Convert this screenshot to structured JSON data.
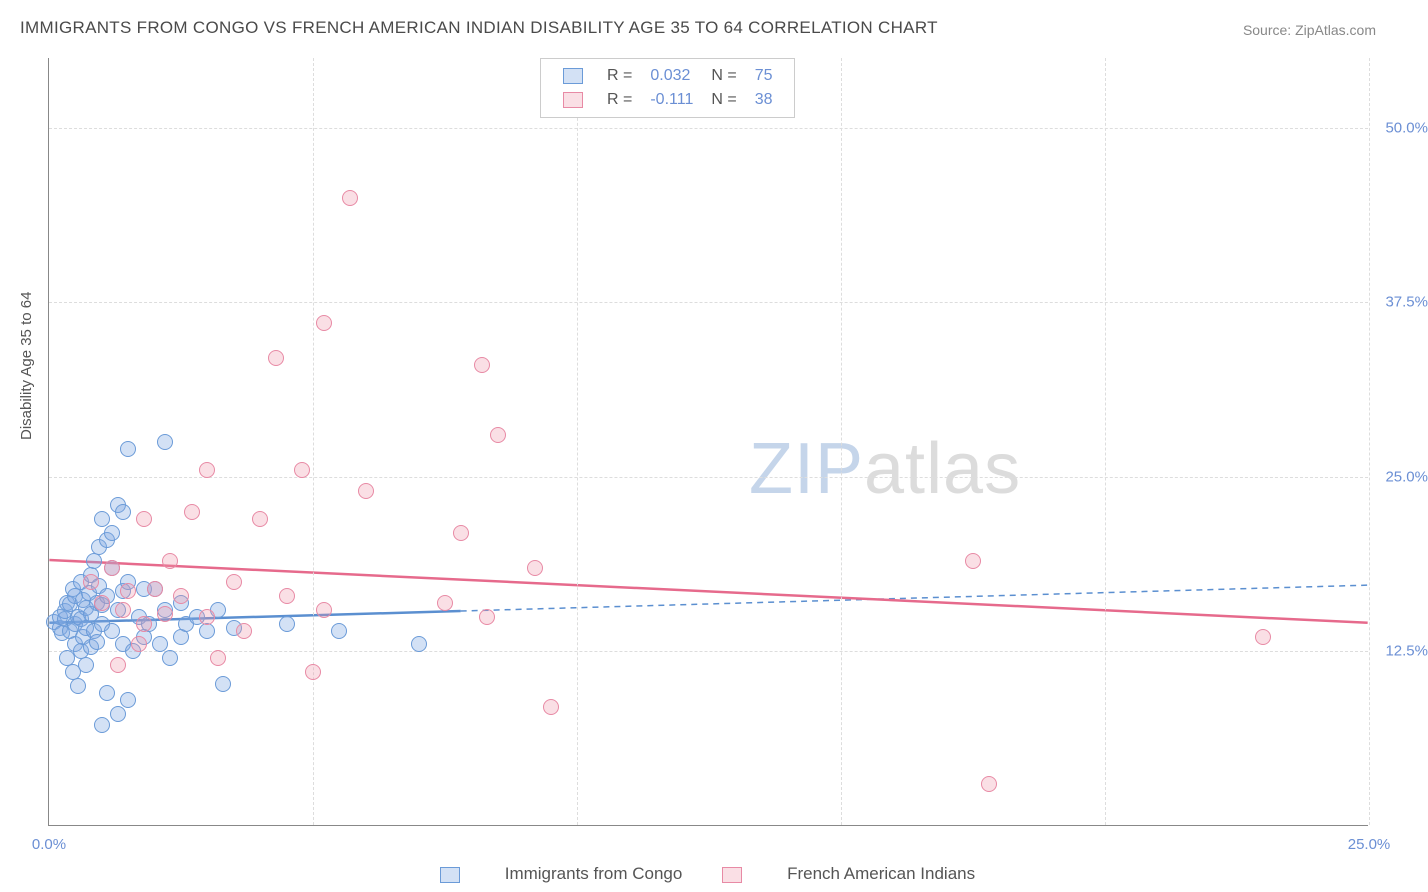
{
  "title": "IMMIGRANTS FROM CONGO VS FRENCH AMERICAN INDIAN DISABILITY AGE 35 TO 64 CORRELATION CHART",
  "source": "Source: ZipAtlas.com",
  "y_axis_label": "Disability Age 35 to 64",
  "watermark_a": "ZIP",
  "watermark_b": "atlas",
  "chart": {
    "type": "scatter",
    "xlim": [
      0,
      25
    ],
    "ylim": [
      0,
      55
    ],
    "x_ticks": [
      0,
      5,
      10,
      15,
      20,
      25
    ],
    "x_tick_labels": [
      "0.0%",
      "",
      "",
      "",
      "",
      "25.0%"
    ],
    "y_ticks": [
      12.5,
      25.0,
      37.5,
      50.0
    ],
    "y_tick_labels": [
      "12.5%",
      "25.0%",
      "37.5%",
      "50.0%"
    ],
    "background_color": "#ffffff",
    "grid_color": "#dddddd",
    "point_radius": 8,
    "series": [
      {
        "name": "Immigrants from Congo",
        "color_fill": "rgba(130,170,225,0.35)",
        "color_stroke": "#6b9bd8",
        "r": "0.032",
        "n": "75",
        "trend": {
          "y_at_x0": 14.5,
          "y_at_x25": 17.2,
          "solid_until_x": 7.8,
          "color": "#5b8fd0",
          "width": 2.5
        },
        "points": [
          [
            0.1,
            14.6
          ],
          [
            0.2,
            14.2
          ],
          [
            0.2,
            15.0
          ],
          [
            0.25,
            13.8
          ],
          [
            0.3,
            14.8
          ],
          [
            0.3,
            15.4
          ],
          [
            0.35,
            12.0
          ],
          [
            0.35,
            16.0
          ],
          [
            0.4,
            14.0
          ],
          [
            0.4,
            15.9
          ],
          [
            0.45,
            11.0
          ],
          [
            0.45,
            17.0
          ],
          [
            0.5,
            13.0
          ],
          [
            0.5,
            14.5
          ],
          [
            0.5,
            16.5
          ],
          [
            0.55,
            10.0
          ],
          [
            0.55,
            15.0
          ],
          [
            0.6,
            12.5
          ],
          [
            0.6,
            14.8
          ],
          [
            0.6,
            17.5
          ],
          [
            0.65,
            13.5
          ],
          [
            0.65,
            16.2
          ],
          [
            0.7,
            11.5
          ],
          [
            0.7,
            14.2
          ],
          [
            0.7,
            15.6
          ],
          [
            0.75,
            16.7
          ],
          [
            0.8,
            12.8
          ],
          [
            0.8,
            15.2
          ],
          [
            0.8,
            18.0
          ],
          [
            0.85,
            14.0
          ],
          [
            0.85,
            19.0
          ],
          [
            0.9,
            13.2
          ],
          [
            0.9,
            16.0
          ],
          [
            0.95,
            17.2
          ],
          [
            0.95,
            20.0
          ],
          [
            1.0,
            7.2
          ],
          [
            1.0,
            14.5
          ],
          [
            1.0,
            15.8
          ],
          [
            1.0,
            22.0
          ],
          [
            1.1,
            9.5
          ],
          [
            1.1,
            16.5
          ],
          [
            1.1,
            20.5
          ],
          [
            1.2,
            14.0
          ],
          [
            1.2,
            18.5
          ],
          [
            1.2,
            21.0
          ],
          [
            1.3,
            8.0
          ],
          [
            1.3,
            15.5
          ],
          [
            1.3,
            23.0
          ],
          [
            1.4,
            13.0
          ],
          [
            1.4,
            16.8
          ],
          [
            1.4,
            22.5
          ],
          [
            1.5,
            9.0
          ],
          [
            1.5,
            17.5
          ],
          [
            1.5,
            27.0
          ],
          [
            1.6,
            12.5
          ],
          [
            1.7,
            15.0
          ],
          [
            1.8,
            13.5
          ],
          [
            1.8,
            17
          ],
          [
            1.9,
            14.5
          ],
          [
            2.0,
            17.0
          ],
          [
            2.1,
            13.0
          ],
          [
            2.2,
            15.5
          ],
          [
            2.2,
            27.5
          ],
          [
            2.3,
            12.0
          ],
          [
            2.5,
            13.5
          ],
          [
            2.5,
            16.0
          ],
          [
            2.6,
            14.5
          ],
          [
            2.8,
            15.0
          ],
          [
            3.0,
            14.0
          ],
          [
            3.2,
            15.5
          ],
          [
            3.3,
            10.2
          ],
          [
            3.5,
            14.2
          ],
          [
            4.5,
            14.5
          ],
          [
            5.5,
            14.0
          ],
          [
            7.0,
            13.0
          ]
        ]
      },
      {
        "name": "French American Indians",
        "color_fill": "rgba(240,150,170,0.30)",
        "color_stroke": "#e88aa5",
        "r": "-0.111",
        "n": "38",
        "trend": {
          "y_at_x0": 19.0,
          "y_at_x25": 14.5,
          "solid_until_x": 25,
          "color": "#e66a8c",
          "width": 2.5
        },
        "points": [
          [
            0.8,
            17.5
          ],
          [
            1.0,
            16.0
          ],
          [
            1.2,
            18.5
          ],
          [
            1.3,
            11.5
          ],
          [
            1.4,
            15.5
          ],
          [
            1.5,
            16.8
          ],
          [
            1.7,
            13.0
          ],
          [
            1.8,
            14.5
          ],
          [
            1.8,
            22.0
          ],
          [
            2.0,
            17.0
          ],
          [
            2.2,
            15.2
          ],
          [
            2.3,
            19.0
          ],
          [
            2.5,
            16.5
          ],
          [
            2.7,
            22.5
          ],
          [
            3.0,
            15.0
          ],
          [
            3.0,
            25.5
          ],
          [
            3.2,
            12.0
          ],
          [
            3.5,
            17.5
          ],
          [
            3.7,
            14.0
          ],
          [
            4.0,
            22.0
          ],
          [
            4.3,
            33.5
          ],
          [
            4.5,
            16.5
          ],
          [
            4.8,
            25.5
          ],
          [
            5.0,
            11.0
          ],
          [
            5.2,
            36.0
          ],
          [
            5.2,
            15.5
          ],
          [
            5.7,
            45.0
          ],
          [
            6.0,
            24.0
          ],
          [
            7.5,
            16.0
          ],
          [
            7.8,
            21.0
          ],
          [
            8.2,
            33.0
          ],
          [
            8.3,
            15.0
          ],
          [
            8.5,
            28.0
          ],
          [
            9.2,
            18.5
          ],
          [
            9.5,
            8.5
          ],
          [
            17.5,
            19.0
          ],
          [
            17.8,
            3.0
          ],
          [
            23.0,
            13.5
          ]
        ]
      }
    ]
  },
  "legend_top": {
    "rows": [
      {
        "swatch_fill": "rgba(130,170,225,0.35)",
        "swatch_stroke": "#6b9bd8",
        "r_label": "R =",
        "r_val": "0.032",
        "n_label": "N =",
        "n_val": "75"
      },
      {
        "swatch_fill": "rgba(240,150,170,0.30)",
        "swatch_stroke": "#e88aa5",
        "r_label": "R =",
        "r_val": "-0.111",
        "n_label": "N =",
        "n_val": "38"
      }
    ]
  },
  "legend_bottom": {
    "items": [
      {
        "swatch_fill": "rgba(130,170,225,0.35)",
        "swatch_stroke": "#6b9bd8",
        "label": "Immigrants from Congo"
      },
      {
        "swatch_fill": "rgba(240,150,170,0.30)",
        "swatch_stroke": "#e88aa5",
        "label": "French American Indians"
      }
    ]
  }
}
